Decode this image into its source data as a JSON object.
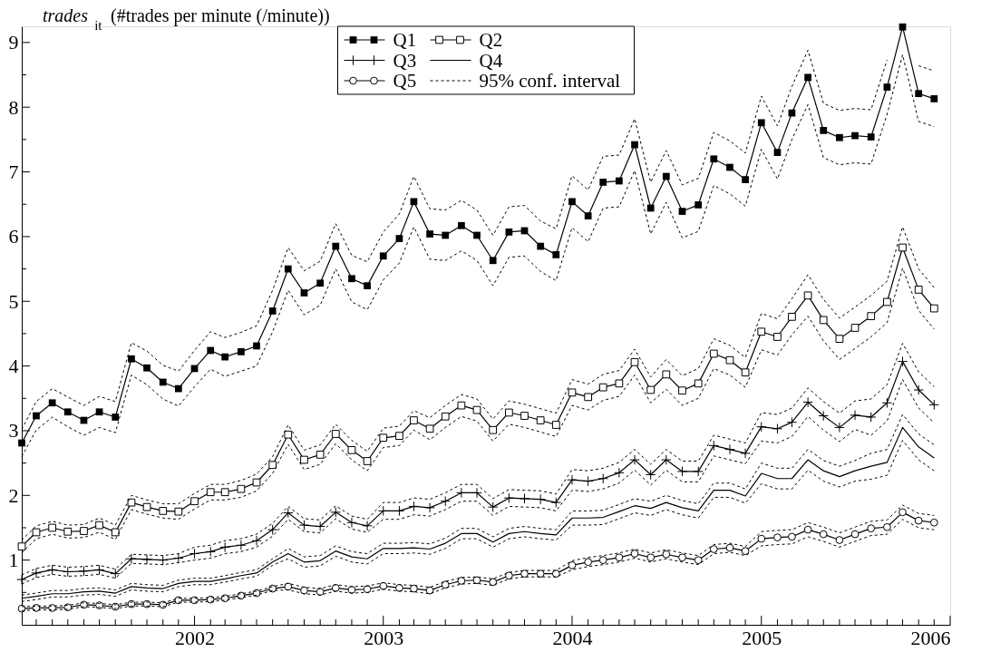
{
  "chart_data": {
    "type": "line",
    "ylabel": "trades$_{it}$ (#trades per minute (/minute))",
    "legend": "top",
    "grid": false,
    "line_style": "solid",
    "xlim": [
      "2001-02",
      "2006"
    ],
    "ylim": [
      0,
      9.25
    ],
    "xticks": [
      "2002",
      "2003",
      "2004",
      "2005",
      "2006",
      {
        "value": "2001-03",
        "label": null
      },
      {
        "value": "2001-04",
        "label": null
      },
      {
        "value": "2001-05",
        "label": null
      },
      {
        "value": "2001-06",
        "label": null
      },
      {
        "value": "2001-07",
        "label": null
      },
      {
        "value": "2001-08",
        "label": null
      },
      {
        "value": "2001-09",
        "label": null
      },
      {
        "value": "2001-10",
        "label": null
      },
      {
        "value": "2001-11",
        "label": null
      },
      {
        "value": "2001-12",
        "label": null
      },
      {
        "value": "2002-02",
        "label": null
      },
      {
        "value": "2002-03",
        "label": null
      },
      {
        "value": "2002-04",
        "label": null
      },
      {
        "value": "2002-05",
        "label": null
      },
      {
        "value": "2002-06",
        "label": null
      },
      {
        "value": "2002-07",
        "label": null
      },
      {
        "value": "2002-08",
        "label": null
      },
      {
        "value": "2002-09",
        "label": null
      },
      {
        "value": "2002-10",
        "label": null
      },
      {
        "value": "2002-11",
        "label": null
      },
      {
        "value": "2002-12",
        "label": null
      },
      {
        "value": "2003-02",
        "label": null
      },
      {
        "value": "2003-03",
        "label": null
      },
      {
        "value": "2003-04",
        "label": null
      },
      {
        "value": "2003-05",
        "label": null
      },
      {
        "value": "2003-06",
        "label": null
      },
      {
        "value": "2003-07",
        "label": null
      },
      {
        "value": "2003-08",
        "label": null
      },
      {
        "value": "2003-09",
        "label": null
      },
      {
        "value": "2003-10",
        "label": null
      },
      {
        "value": "2003-11",
        "label": null
      },
      {
        "value": "2003-12",
        "label": null
      },
      {
        "value": "2004-02",
        "label": null
      },
      {
        "value": "2004-03",
        "label": null
      },
      {
        "value": "2004-04",
        "label": null
      },
      {
        "value": "2004-05",
        "label": null
      },
      {
        "value": "2004-06",
        "label": null
      },
      {
        "value": "2004-07",
        "label": null
      },
      {
        "value": "2004-08",
        "label": null
      },
      {
        "value": "2004-09",
        "label": null
      },
      {
        "value": "2004-10",
        "label": null
      },
      {
        "value": "2004-11",
        "label": null
      },
      {
        "value": "2004-12",
        "label": null
      },
      {
        "value": "2005-02",
        "label": null
      },
      {
        "value": "2005-03",
        "label": null
      },
      {
        "value": "2005-04",
        "label": null
      },
      {
        "value": "2005-05",
        "label": null
      },
      {
        "value": "2005-06",
        "label": null
      },
      {
        "value": "2005-07",
        "label": null
      },
      {
        "value": "2005-08",
        "label": null
      },
      {
        "value": "2005-09",
        "label": null
      },
      {
        "value": "2005-10",
        "label": null
      },
      {
        "value": "2005-11",
        "label": null
      },
      {
        "value": "2005-12",
        "label": null
      }
    ],
    "yticks": [
      1,
      2,
      3,
      4,
      5,
      6,
      7,
      8,
      9,
      {
        "value": 0.5,
        "label": null
      },
      {
        "value": 1.5,
        "label": null
      },
      {
        "value": 2.5,
        "label": null
      },
      {
        "value": 3.5,
        "label": null
      },
      {
        "value": 4.5,
        "label": null
      },
      {
        "value": 5.5,
        "label": null
      },
      {
        "value": 6.5,
        "label": null
      },
      {
        "value": 7.5,
        "label": null
      },
      {
        "value": 8.5,
        "label": null
      }
    ],
    "x": [
      "2001-02",
      "2001-03",
      "2001-04",
      "2001-05",
      "2001-06",
      "2001-07",
      "2001-08",
      "2001-09",
      "2001-10",
      "2001-11",
      "2001-12",
      "2002-01",
      "2002-02",
      "2002-03",
      "2002-04",
      "2002-05",
      "2002-06",
      "2002-07",
      "2002-08",
      "2002-09",
      "2002-10",
      "2002-11",
      "2002-12",
      "2003-01",
      "2003-02",
      "2003-03",
      "2003-04",
      "2003-05",
      "2003-06",
      "2003-07",
      "2003-08",
      "2003-09",
      "2003-10",
      "2003-11",
      "2003-12",
      "2004-01",
      "2004-02",
      "2004-03",
      "2004-04",
      "2004-05",
      "2004-06",
      "2004-07",
      "2004-08",
      "2004-09",
      "2004-10",
      "2004-11",
      "2004-12",
      "2005-01",
      "2005-02",
      "2005-03",
      "2005-04",
      "2005-05",
      "2005-06",
      "2005-07",
      "2005-08",
      "2005-09",
      "2005-10",
      "2005-11",
      "2005-12"
    ],
    "series": [
      {
        "name": "Q1",
        "color": "#000000",
        "marker": "square",
        "values": [
          2.81,
          3.23,
          3.43,
          3.29,
          3.16,
          3.29,
          3.21,
          4.11,
          3.97,
          3.75,
          3.65,
          3.96,
          4.24,
          4.14,
          4.22,
          4.31,
          4.85,
          5.5,
          5.13,
          5.28,
          5.85,
          5.35,
          5.24,
          5.7,
          5.97,
          6.54,
          6.04,
          6.02,
          6.17,
          6.02,
          5.63,
          6.07,
          6.09,
          5.85,
          5.72,
          6.54,
          6.32,
          6.84,
          6.86,
          7.42,
          6.44,
          6.93,
          6.39,
          6.49,
          7.2,
          7.07,
          6.88,
          7.76,
          7.3,
          7.91,
          8.46,
          7.64,
          7.53,
          7.56,
          7.54,
          8.31,
          9.24,
          8.21,
          8.13
        ]
      },
      {
        "name": "Q2",
        "color": "#000000",
        "marker": "square",
        "values": [
          1.21,
          1.43,
          1.5,
          1.44,
          1.45,
          1.54,
          1.43,
          1.89,
          1.82,
          1.76,
          1.75,
          1.91,
          2.05,
          2.05,
          2.1,
          2.2,
          2.47,
          2.94,
          2.55,
          2.63,
          2.95,
          2.7,
          2.53,
          2.89,
          2.92,
          3.16,
          3.03,
          3.22,
          3.39,
          3.32,
          3.01,
          3.28,
          3.23,
          3.16,
          3.09,
          3.59,
          3.52,
          3.67,
          3.73,
          4.06,
          3.63,
          3.87,
          3.62,
          3.73,
          4.19,
          4.09,
          3.9,
          4.53,
          4.45,
          4.76,
          5.09,
          4.71,
          4.42,
          4.59,
          4.77,
          4.99,
          5.83,
          5.18,
          4.89
        ]
      },
      {
        "name": "Q3",
        "color": "#000000",
        "marker": "cross",
        "values": [
          0.7,
          0.8,
          0.85,
          0.82,
          0.83,
          0.85,
          0.79,
          1.02,
          1.01,
          1.0,
          1.03,
          1.1,
          1.13,
          1.2,
          1.23,
          1.3,
          1.47,
          1.73,
          1.54,
          1.52,
          1.74,
          1.58,
          1.53,
          1.76,
          1.76,
          1.83,
          1.81,
          1.91,
          2.04,
          2.04,
          1.82,
          1.96,
          1.95,
          1.94,
          1.89,
          2.24,
          2.22,
          2.26,
          2.35,
          2.55,
          2.32,
          2.55,
          2.37,
          2.37,
          2.77,
          2.71,
          2.65,
          3.06,
          3.03,
          3.13,
          3.44,
          3.23,
          3.05,
          3.24,
          3.21,
          3.43,
          4.07,
          3.63,
          3.4
        ]
      },
      {
        "name": "Q4",
        "color": "#000000",
        "marker": "none",
        "values": [
          0.41,
          0.44,
          0.48,
          0.48,
          0.51,
          0.52,
          0.49,
          0.59,
          0.57,
          0.56,
          0.64,
          0.67,
          0.67,
          0.71,
          0.76,
          0.8,
          0.97,
          1.1,
          0.97,
          0.99,
          1.14,
          1.05,
          1.02,
          1.18,
          1.18,
          1.19,
          1.17,
          1.26,
          1.41,
          1.41,
          1.28,
          1.41,
          1.44,
          1.41,
          1.39,
          1.65,
          1.65,
          1.66,
          1.75,
          1.84,
          1.8,
          1.89,
          1.81,
          1.76,
          2.08,
          2.08,
          1.99,
          2.34,
          2.26,
          2.26,
          2.55,
          2.38,
          2.29,
          2.38,
          2.45,
          2.51,
          3.05,
          2.75,
          2.58
        ]
      },
      {
        "name": "Q5",
        "color": "#000000",
        "marker": "circle",
        "values": [
          0.25,
          0.26,
          0.26,
          0.27,
          0.31,
          0.3,
          0.28,
          0.32,
          0.32,
          0.31,
          0.38,
          0.38,
          0.39,
          0.41,
          0.45,
          0.49,
          0.56,
          0.59,
          0.53,
          0.51,
          0.57,
          0.54,
          0.55,
          0.6,
          0.57,
          0.56,
          0.53,
          0.62,
          0.68,
          0.69,
          0.66,
          0.76,
          0.79,
          0.79,
          0.79,
          0.92,
          0.97,
          1.0,
          1.04,
          1.1,
          1.04,
          1.09,
          1.04,
          1.0,
          1.17,
          1.19,
          1.14,
          1.33,
          1.35,
          1.36,
          1.47,
          1.4,
          1.31,
          1.4,
          1.49,
          1.51,
          1.74,
          1.61,
          1.58
        ]
      },
      {
        "name": "95% conf. interval",
        "color": "#000000",
        "line_style": "dotted",
        "marker": "none",
        "values": [
          3.02,
          3.45,
          3.65,
          3.52,
          3.39,
          3.53,
          3.45,
          4.36,
          4.23,
          4.01,
          3.92,
          4.24,
          4.53,
          4.44,
          4.52,
          4.62,
          5.17,
          5.83,
          5.47,
          5.62,
          6.2,
          5.71,
          5.61,
          6.07,
          6.35,
          6.93,
          6.43,
          6.41,
          6.56,
          6.41,
          6.02,
          6.46,
          6.48,
          6.24,
          6.12,
          6.94,
          6.72,
          7.24,
          7.26,
          7.82,
          6.84,
          7.33,
          6.8,
          6.9,
          7.61,
          7.48,
          7.29,
          8.17,
          7.71,
          8.32,
          8.88,
          8.06,
          7.95,
          7.98,
          7.96,
          8.73,
          null,
          8.64,
          8.56
        ]
      },
      {
        "color": "#000000",
        "line_style": "dotted",
        "marker": "none",
        "values": [
          2.6,
          3.01,
          3.21,
          3.06,
          2.93,
          3.05,
          2.97,
          3.86,
          3.71,
          3.49,
          3.38,
          3.68,
          3.95,
          3.84,
          3.92,
          4.0,
          4.53,
          5.17,
          4.79,
          4.94,
          5.5,
          4.99,
          4.87,
          5.33,
          5.59,
          6.15,
          5.65,
          5.63,
          5.78,
          5.63,
          5.24,
          5.68,
          5.7,
          5.46,
          5.32,
          6.14,
          5.92,
          6.44,
          6.46,
          7.02,
          6.04,
          6.53,
          5.98,
          6.08,
          6.79,
          6.66,
          6.47,
          7.35,
          6.89,
          7.5,
          8.04,
          7.22,
          7.11,
          7.14,
          7.12,
          7.89,
          8.81,
          7.78,
          7.7
        ]
      },
      {
        "color": "#000000",
        "line_style": "dotted",
        "marker": "none",
        "values": [
          1.31,
          1.53,
          1.6,
          1.54,
          1.55,
          1.65,
          1.54,
          2.0,
          1.93,
          1.87,
          1.87,
          2.03,
          2.17,
          2.17,
          2.23,
          2.33,
          2.6,
          3.09,
          2.7,
          2.78,
          3.1,
          2.85,
          2.68,
          3.04,
          3.07,
          3.31,
          3.2,
          3.39,
          3.56,
          3.49,
          3.18,
          3.46,
          3.41,
          3.34,
          3.27,
          3.79,
          3.72,
          3.87,
          3.93,
          4.26,
          3.83,
          4.1,
          3.85,
          3.96,
          4.42,
          4.32,
          4.13,
          4.81,
          4.73,
          5.04,
          5.41,
          5.03,
          4.74,
          4.91,
          5.09,
          5.31,
          6.15,
          5.5,
          5.21
        ]
      },
      {
        "color": "#000000",
        "line_style": "dotted",
        "marker": "none",
        "values": [
          1.11,
          1.33,
          1.4,
          1.34,
          1.35,
          1.43,
          1.32,
          1.78,
          1.71,
          1.65,
          1.63,
          1.79,
          1.93,
          1.93,
          1.97,
          2.07,
          2.34,
          2.79,
          2.4,
          2.48,
          2.8,
          2.55,
          2.38,
          2.74,
          2.77,
          3.01,
          2.86,
          3.05,
          3.22,
          3.15,
          2.84,
          3.1,
          3.05,
          2.98,
          2.91,
          3.39,
          3.32,
          3.47,
          3.53,
          3.86,
          3.43,
          3.64,
          3.39,
          3.5,
          3.96,
          3.86,
          3.67,
          4.25,
          4.17,
          4.48,
          4.77,
          4.39,
          4.1,
          4.27,
          4.45,
          4.67,
          5.51,
          4.86,
          4.57
        ]
      },
      {
        "color": "#000000",
        "line_style": "dotted",
        "marker": "none",
        "values": [
          0.77,
          0.87,
          0.92,
          0.89,
          0.9,
          0.92,
          0.86,
          1.09,
          1.08,
          1.07,
          1.1,
          1.2,
          1.23,
          1.3,
          1.33,
          1.4,
          1.57,
          1.83,
          1.64,
          1.62,
          1.84,
          1.68,
          1.63,
          1.89,
          1.89,
          1.96,
          1.94,
          2.04,
          2.17,
          2.17,
          1.95,
          2.09,
          2.08,
          2.07,
          2.02,
          2.4,
          2.38,
          2.42,
          2.51,
          2.71,
          2.48,
          2.71,
          2.53,
          2.53,
          2.93,
          2.87,
          2.81,
          3.28,
          3.25,
          3.35,
          3.66,
          3.45,
          3.27,
          3.46,
          3.49,
          3.71,
          4.35,
          3.91,
          3.68
        ]
      },
      {
        "color": "#000000",
        "line_style": "dotted",
        "marker": "none",
        "values": [
          0.63,
          0.73,
          0.78,
          0.75,
          0.76,
          0.78,
          0.72,
          0.95,
          0.94,
          0.93,
          0.96,
          1.0,
          1.03,
          1.1,
          1.13,
          1.2,
          1.37,
          1.63,
          1.44,
          1.42,
          1.64,
          1.48,
          1.43,
          1.63,
          1.63,
          1.7,
          1.68,
          1.78,
          1.91,
          1.91,
          1.69,
          1.83,
          1.82,
          1.81,
          1.76,
          2.08,
          2.06,
          2.1,
          2.19,
          2.39,
          2.16,
          2.39,
          2.21,
          2.21,
          2.61,
          2.55,
          2.49,
          2.84,
          2.81,
          2.91,
          3.22,
          3.01,
          2.83,
          3.02,
          2.93,
          3.15,
          3.79,
          3.35,
          3.12
        ]
      },
      {
        "color": "#000000",
        "line_style": "dotted",
        "marker": "none",
        "values": [
          0.46,
          0.49,
          0.53,
          0.53,
          0.56,
          0.57,
          0.54,
          0.64,
          0.62,
          0.61,
          0.69,
          0.72,
          0.72,
          0.76,
          0.81,
          0.85,
          1.02,
          1.18,
          1.05,
          1.07,
          1.22,
          1.13,
          1.1,
          1.26,
          1.26,
          1.27,
          1.25,
          1.34,
          1.49,
          1.49,
          1.36,
          1.49,
          1.52,
          1.49,
          1.47,
          1.76,
          1.76,
          1.77,
          1.86,
          1.95,
          1.91,
          2.0,
          1.92,
          1.87,
          2.19,
          2.19,
          2.1,
          2.5,
          2.42,
          2.42,
          2.71,
          2.54,
          2.45,
          2.54,
          2.65,
          2.71,
          3.25,
          2.95,
          2.78
        ]
      },
      {
        "color": "#000000",
        "line_style": "dotted",
        "marker": "none",
        "values": [
          0.36,
          0.39,
          0.43,
          0.43,
          0.46,
          0.47,
          0.44,
          0.54,
          0.52,
          0.51,
          0.59,
          0.62,
          0.62,
          0.66,
          0.71,
          0.75,
          0.92,
          1.02,
          0.89,
          0.91,
          1.06,
          0.97,
          0.94,
          1.1,
          1.1,
          1.11,
          1.09,
          1.18,
          1.33,
          1.33,
          1.2,
          1.33,
          1.36,
          1.33,
          1.31,
          1.54,
          1.54,
          1.55,
          1.64,
          1.73,
          1.69,
          1.78,
          1.7,
          1.65,
          1.97,
          1.97,
          1.88,
          2.18,
          2.1,
          2.1,
          2.39,
          2.22,
          2.13,
          2.22,
          2.25,
          2.31,
          2.85,
          2.55,
          2.38
        ]
      },
      {
        "color": "#000000",
        "line_style": "dotted",
        "marker": "none",
        "values": [
          0.28,
          0.29,
          0.29,
          0.3,
          0.34,
          0.33,
          0.31,
          0.35,
          0.35,
          0.34,
          0.41,
          0.41,
          0.42,
          0.44,
          0.48,
          0.52,
          0.59,
          0.64,
          0.58,
          0.56,
          0.62,
          0.59,
          0.6,
          0.65,
          0.62,
          0.61,
          0.58,
          0.67,
          0.73,
          0.74,
          0.71,
          0.81,
          0.84,
          0.84,
          0.84,
          0.99,
          1.04,
          1.07,
          1.11,
          1.17,
          1.11,
          1.16,
          1.11,
          1.07,
          1.24,
          1.26,
          1.21,
          1.44,
          1.46,
          1.47,
          1.58,
          1.51,
          1.42,
          1.51,
          1.6,
          1.62,
          1.85,
          1.72,
          1.69
        ]
      },
      {
        "color": "#000000",
        "line_style": "dotted",
        "marker": "none",
        "values": [
          0.22,
          0.23,
          0.23,
          0.24,
          0.28,
          0.27,
          0.25,
          0.29,
          0.29,
          0.28,
          0.35,
          0.35,
          0.36,
          0.38,
          0.42,
          0.46,
          0.53,
          0.54,
          0.48,
          0.46,
          0.52,
          0.49,
          0.5,
          0.55,
          0.52,
          0.51,
          0.48,
          0.57,
          0.63,
          0.64,
          0.61,
          0.71,
          0.74,
          0.74,
          0.74,
          0.85,
          0.9,
          0.93,
          0.97,
          1.03,
          0.97,
          1.02,
          0.97,
          0.93,
          1.1,
          1.12,
          1.07,
          1.22,
          1.24,
          1.25,
          1.36,
          1.29,
          1.2,
          1.29,
          1.38,
          1.4,
          1.63,
          1.5,
          1.47
        ]
      }
    ]
  }
}
